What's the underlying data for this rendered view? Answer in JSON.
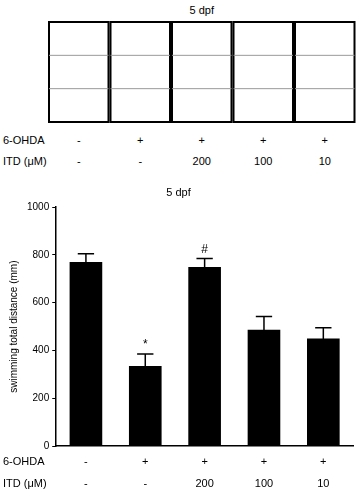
{
  "chart_data": {
    "type": "bar",
    "title": "5 dpf",
    "y_label": "swimming total distance (mm)",
    "x_rows": [
      {
        "label": "6-OHDA",
        "values": [
          "-",
          "+",
          "+",
          "+",
          "+"
        ]
      },
      {
        "label": "ITD (μM)",
        "values": [
          "-",
          "-",
          "200",
          "100",
          "10"
        ]
      }
    ],
    "values": [
      770,
      335,
      750,
      487,
      450
    ],
    "errors": [
      35,
      50,
      35,
      55,
      45
    ],
    "significance": [
      null,
      "*",
      "#",
      null,
      null
    ],
    "color": "#000000",
    "ylim": [
      0,
      1000
    ],
    "yticks": [
      0,
      200,
      400,
      600,
      800,
      1000
    ],
    "grid": false
  }
}
